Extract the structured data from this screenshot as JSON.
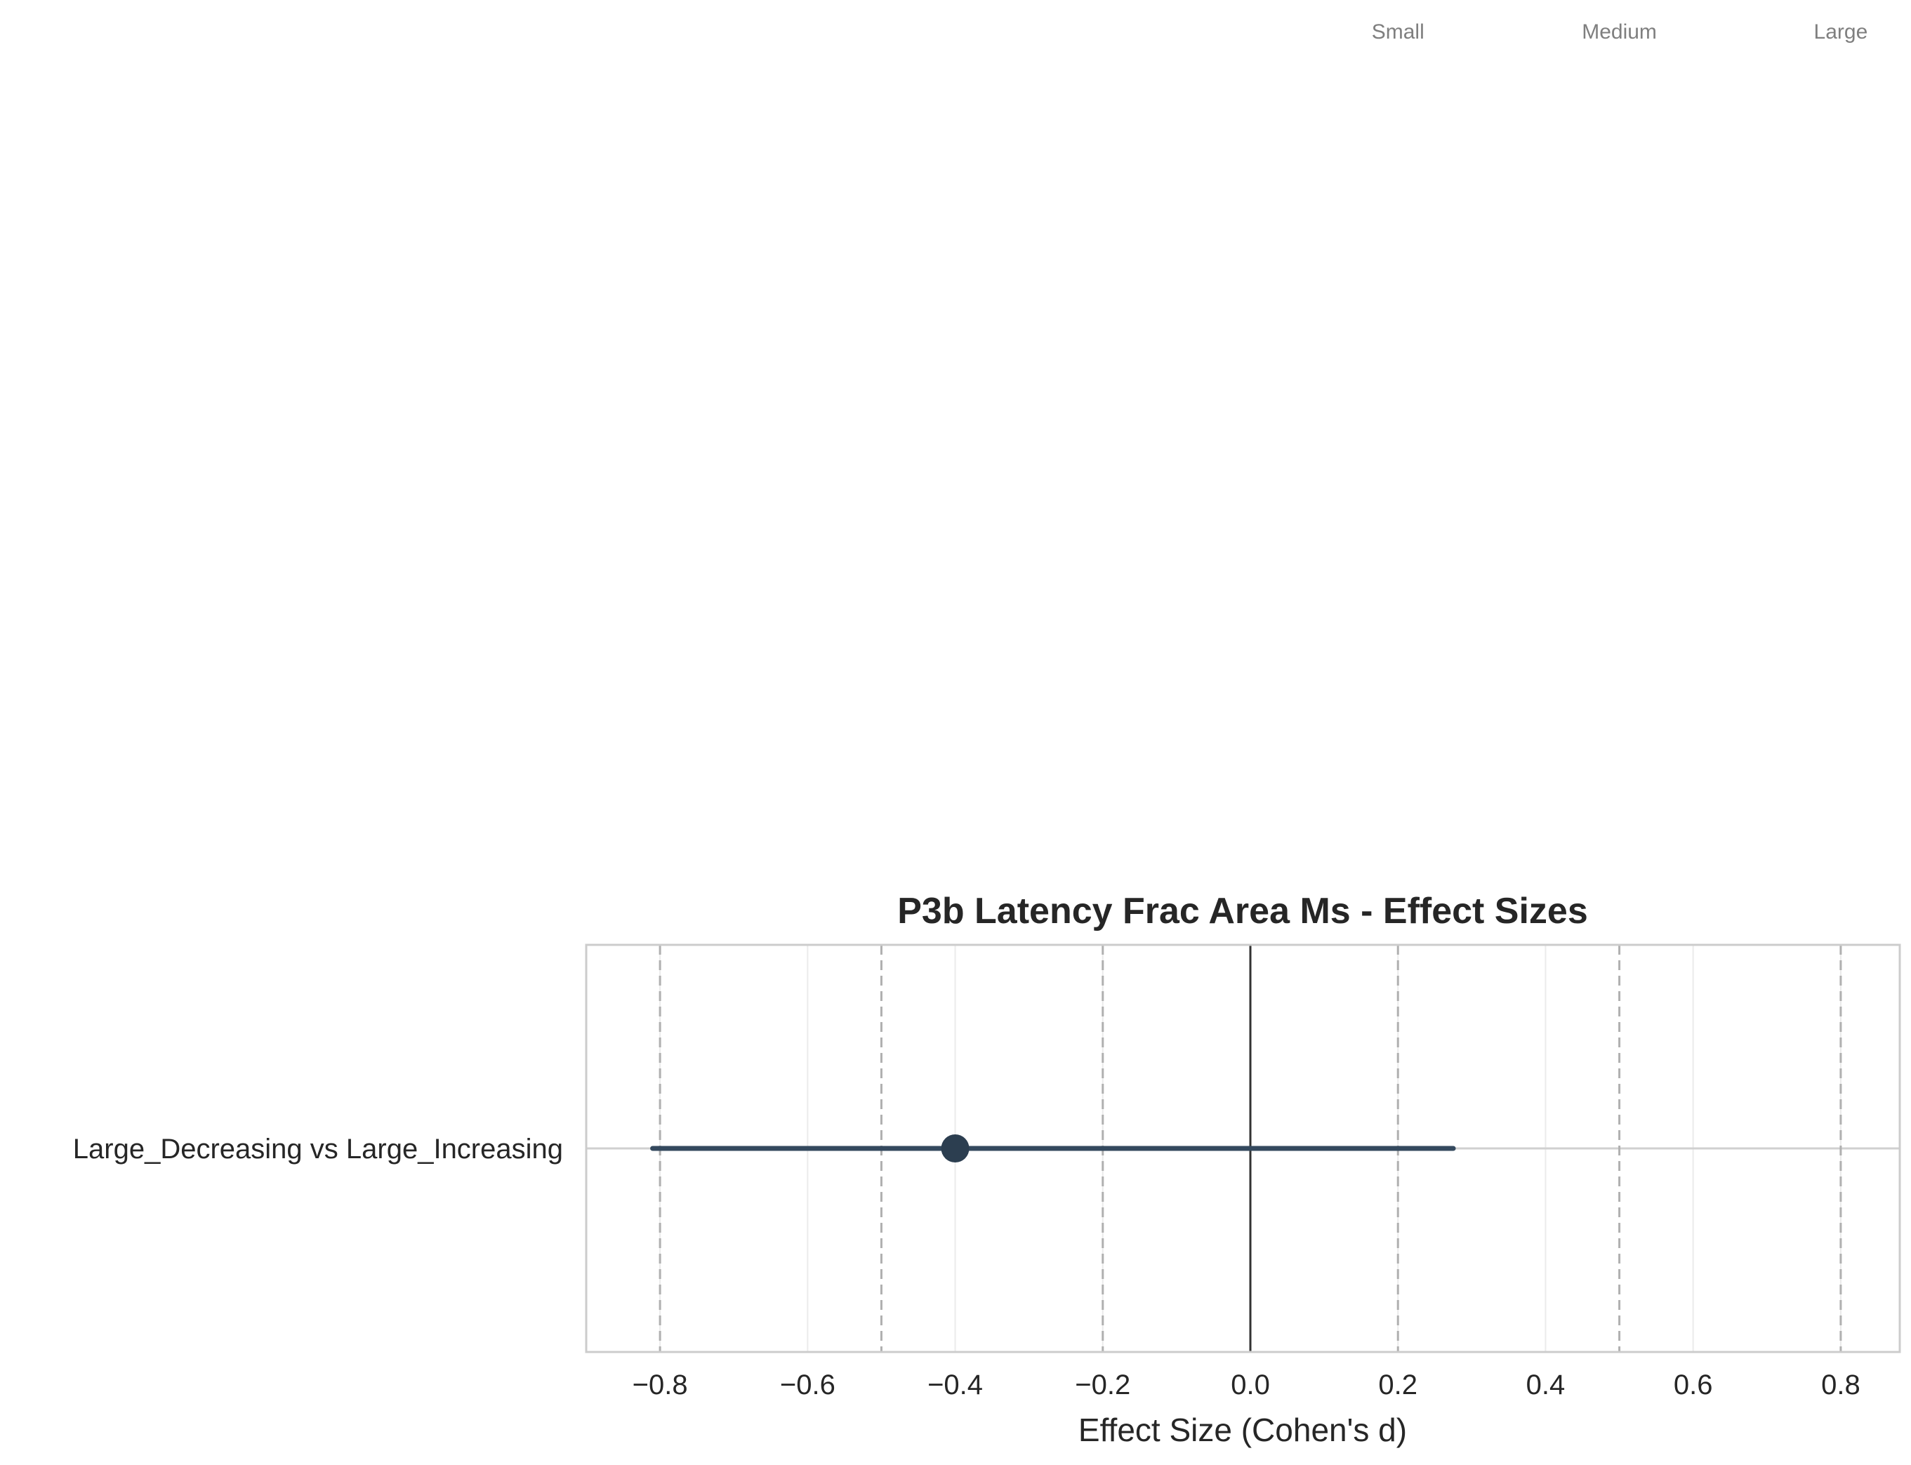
{
  "chart_data": {
    "type": "forest",
    "title": "P3b Latency Frac Area Ms - Effect Sizes",
    "xlabel": "Effect Size (Cohen's d)",
    "ylabel": "",
    "xlim": [
      -0.9,
      0.88
    ],
    "x_ticks": [
      -0.8,
      -0.6,
      -0.4,
      -0.2,
      0.0,
      0.2,
      0.4,
      0.6,
      0.8
    ],
    "x_tick_labels": [
      "−0.8",
      "−0.6",
      "−0.4",
      "−0.2",
      "0.0",
      "0.2",
      "0.4",
      "0.6",
      "0.8"
    ],
    "grid": true,
    "zero_line": 0,
    "reference_lines": [
      -0.8,
      -0.5,
      -0.2,
      0.2,
      0.5,
      0.8
    ],
    "reference_labels": [
      {
        "x": 0.2,
        "text": "Small"
      },
      {
        "x": 0.5,
        "text": "Medium"
      },
      {
        "x": 0.8,
        "text": "Large"
      }
    ],
    "comparisons": [
      {
        "label": "Large_Decreasing vs Large_Increasing",
        "d": -0.4,
        "ci_low": -0.81,
        "ci_high": 0.275
      }
    ],
    "colors": {
      "point": "#2c3e50",
      "ci_line": "#34495e",
      "zero_line": "#333333",
      "reference": "#b0b0b0",
      "grid": "#ebebeb",
      "frame": "#cccccc"
    }
  }
}
